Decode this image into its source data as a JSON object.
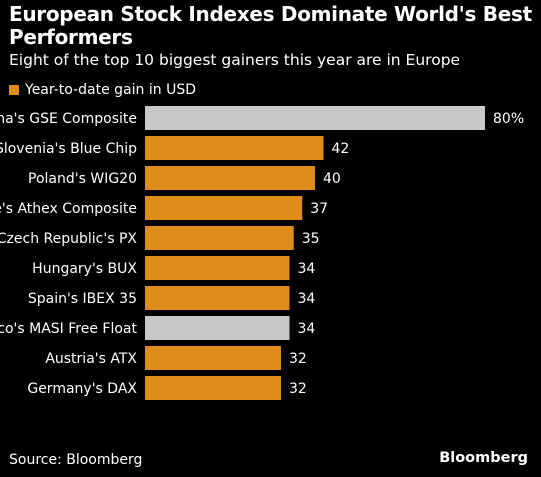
{
  "header": {
    "title": "European Stock Indexes Dominate World's Best Performers",
    "subtitle": "Eight of the top 10 biggest gainers this year are in Europe"
  },
  "legend": {
    "label": "Year-to-date gain in USD",
    "color": "#e08c1a"
  },
  "colors": {
    "europe": "#e08c1a",
    "other": "#c8c8c8",
    "background": "#000000"
  },
  "chart_data": {
    "type": "bar",
    "orientation": "horizontal",
    "categories": [
      "Ghana's GSE Composite",
      "Slovenia's Blue Chip",
      "Poland's WIG20",
      "Greece's Athex Composite",
      "Czech Republic's PX",
      "Hungary's BUX",
      "Spain's IBEX 35",
      "Morocco's MASI Free Float",
      "Austria's ATX",
      "Germany's DAX"
    ],
    "values": [
      80,
      42,
      40,
      37,
      35,
      34,
      34,
      34,
      32,
      32
    ],
    "value_labels": [
      "80%",
      "42",
      "40",
      "37",
      "35",
      "34",
      "34",
      "34",
      "32",
      "32"
    ],
    "highlight": [
      "other",
      "europe",
      "europe",
      "europe",
      "europe",
      "europe",
      "europe",
      "other",
      "europe",
      "europe"
    ],
    "series": [
      {
        "name": "Year-to-date gain in USD",
        "values": [
          80,
          42,
          40,
          37,
          35,
          34,
          34,
          34,
          32,
          32
        ]
      }
    ],
    "xlim": [
      0,
      80
    ],
    "grid": false,
    "legend_position": "top-left"
  },
  "footer": {
    "source": "Source: Bloomberg",
    "brand": "Bloomberg"
  }
}
